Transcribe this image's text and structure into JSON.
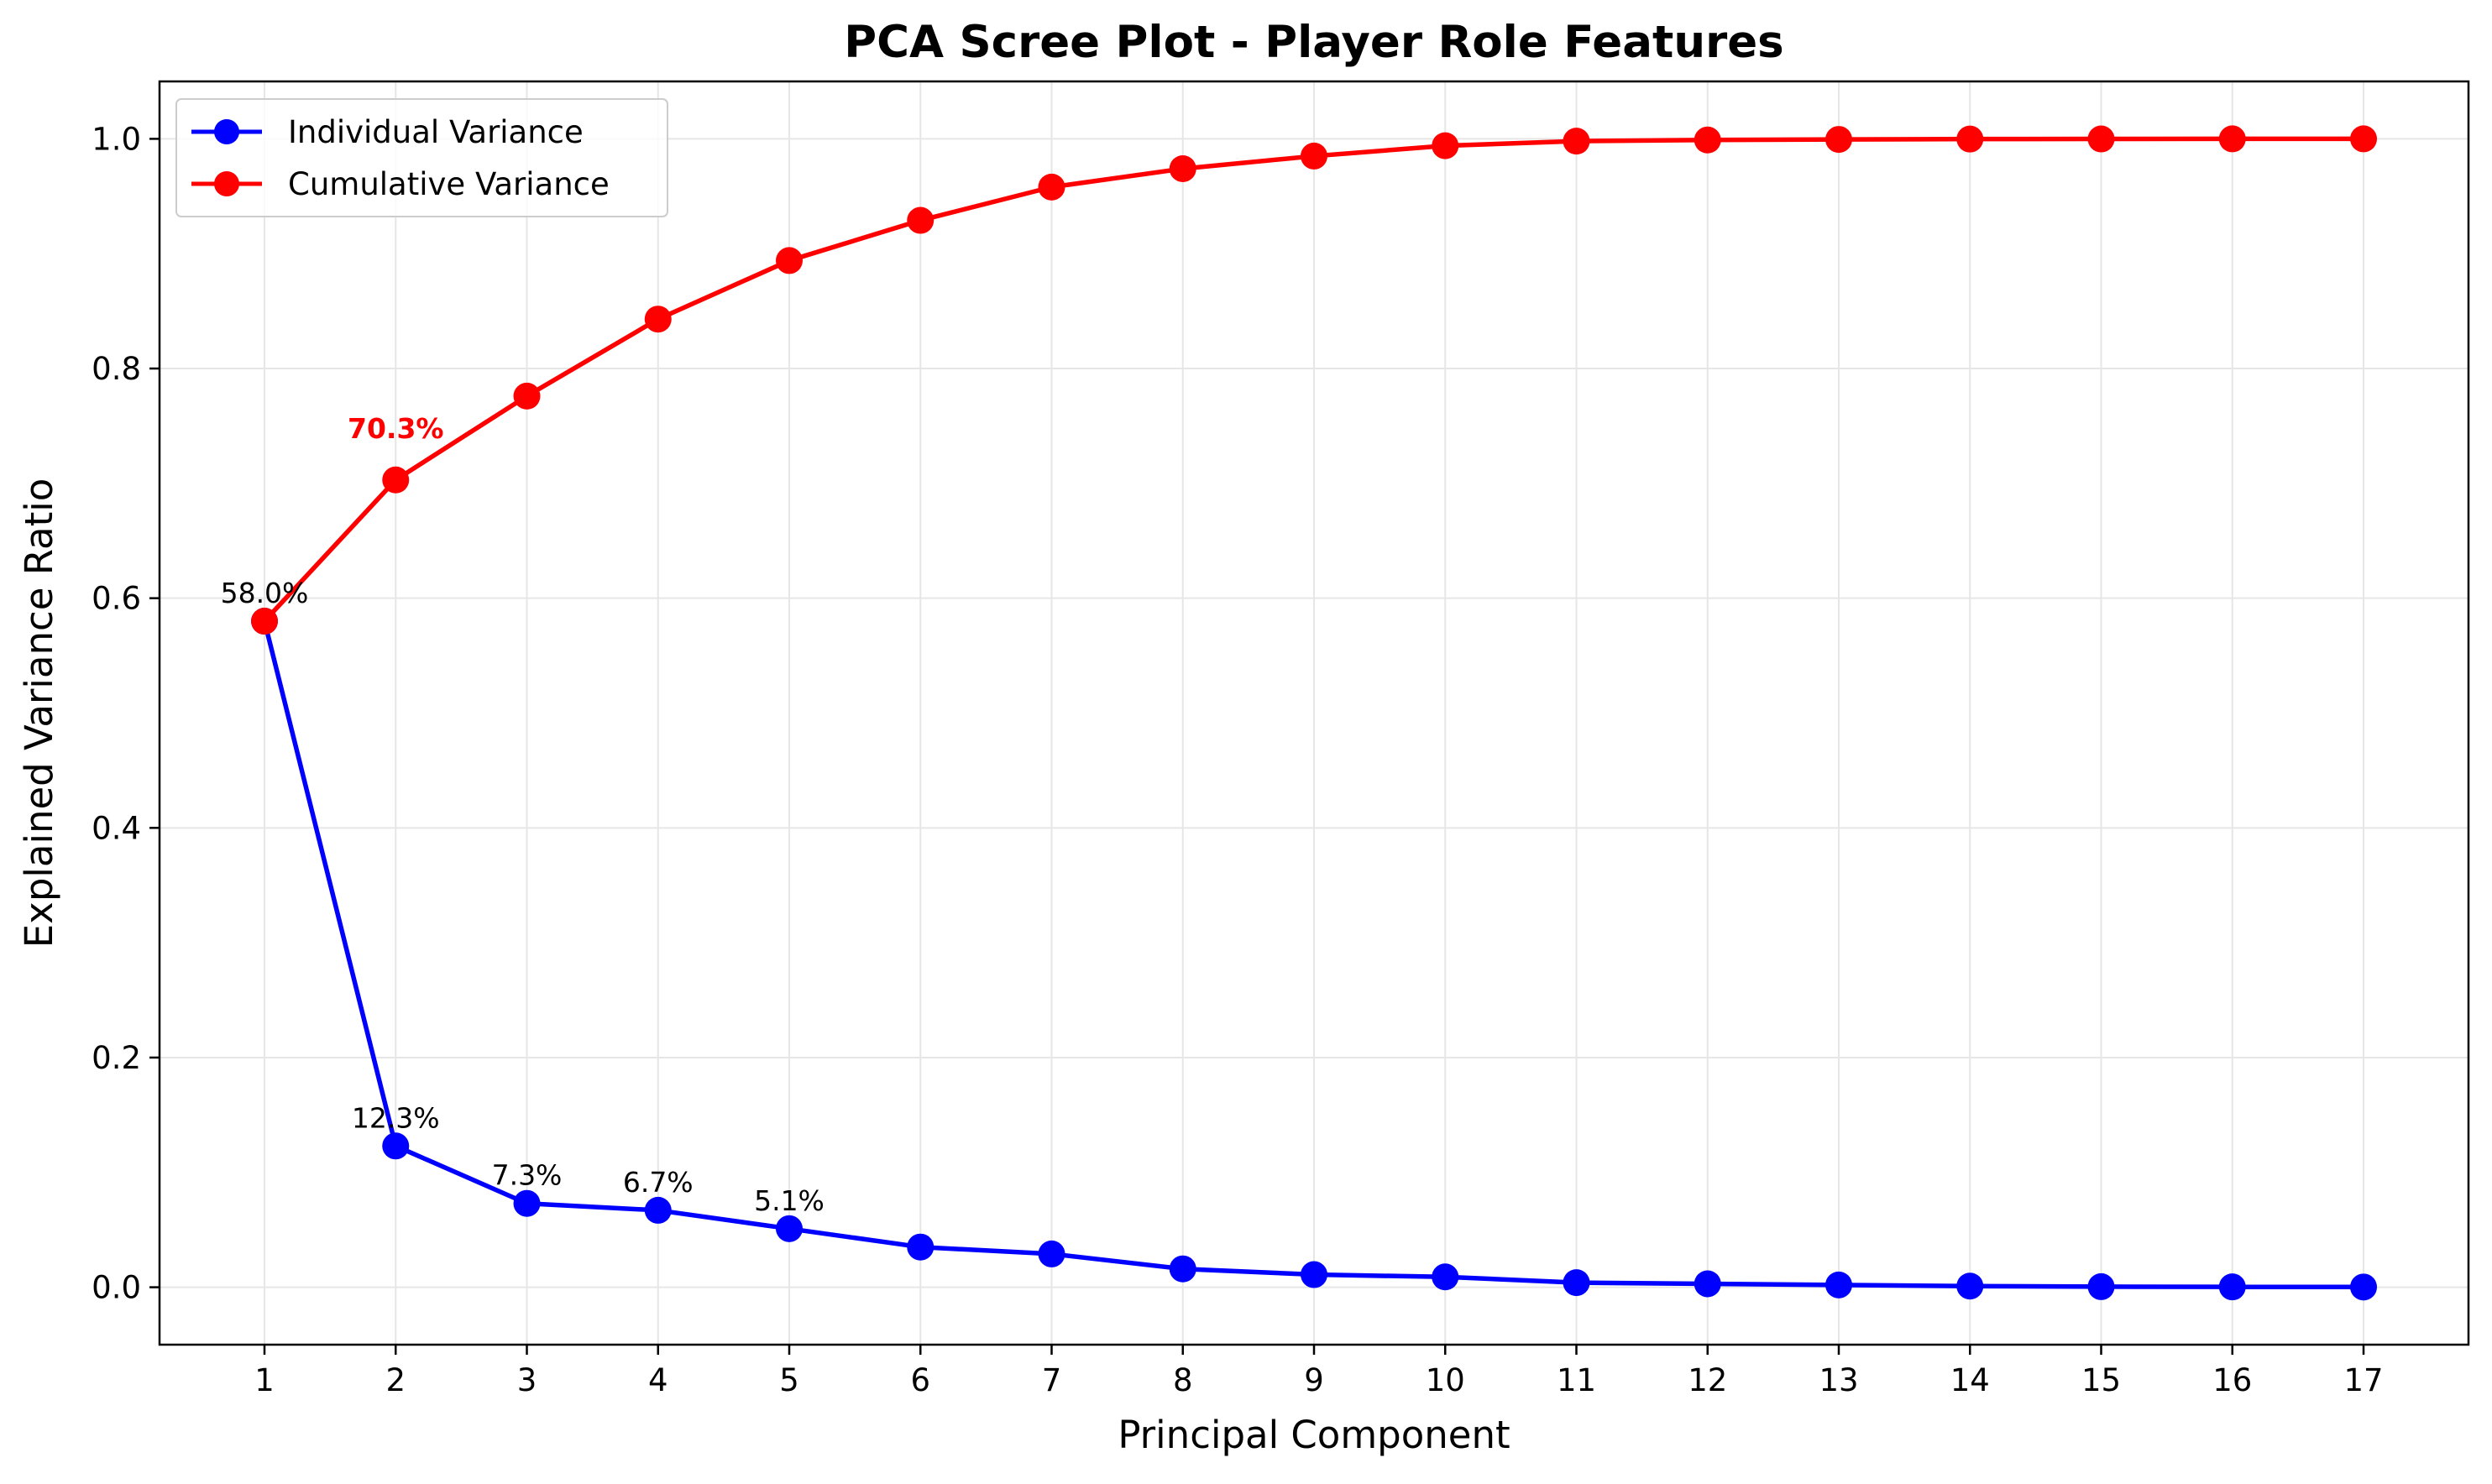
{
  "chart_data": {
    "type": "line",
    "title": "PCA Scree Plot - Player Role Features",
    "xlabel": "Principal Component",
    "ylabel": "Explained Variance Ratio",
    "x": [
      1,
      2,
      3,
      4,
      5,
      6,
      7,
      8,
      9,
      10,
      11,
      12,
      13,
      14,
      15,
      16,
      17
    ],
    "xlim": [
      0.2,
      17.8
    ],
    "ylim": [
      -0.05,
      1.05
    ],
    "yticks": [
      0.0,
      0.2,
      0.4,
      0.6,
      0.8,
      1.0
    ],
    "ytick_labels": [
      "0.0",
      "0.2",
      "0.4",
      "0.6",
      "0.8",
      "1.0"
    ],
    "grid": true,
    "legend_position": "top-left",
    "series": [
      {
        "name": "Individual Variance",
        "color": "#0000ff",
        "values": [
          0.58,
          0.123,
          0.073,
          0.067,
          0.051,
          0.035,
          0.029,
          0.016,
          0.011,
          0.009,
          0.004,
          0.003,
          0.002,
          0.001,
          0.0005,
          0.0003,
          0.0002
        ]
      },
      {
        "name": "Cumulative Variance",
        "color": "#ff0000",
        "values": [
          0.58,
          0.703,
          0.776,
          0.843,
          0.894,
          0.929,
          0.958,
          0.974,
          0.985,
          0.994,
          0.998,
          0.999,
          0.9995,
          0.9998,
          0.9999,
          1.0,
          1.0
        ]
      }
    ],
    "annotations": [
      {
        "text": "58.0%",
        "x": 1,
        "y": 0.58,
        "color": "#000000",
        "bold": false
      },
      {
        "text": "12.3%",
        "x": 2,
        "y": 0.123,
        "color": "#000000",
        "bold": false
      },
      {
        "text": "7.3%",
        "x": 3,
        "y": 0.073,
        "color": "#000000",
        "bold": false
      },
      {
        "text": "6.7%",
        "x": 4,
        "y": 0.067,
        "color": "#000000",
        "bold": false
      },
      {
        "text": "5.1%",
        "x": 5,
        "y": 0.051,
        "color": "#000000",
        "bold": false
      },
      {
        "text": "70.3%",
        "x": 2,
        "y": 0.703,
        "color": "#ff0000",
        "bold": true
      }
    ]
  }
}
